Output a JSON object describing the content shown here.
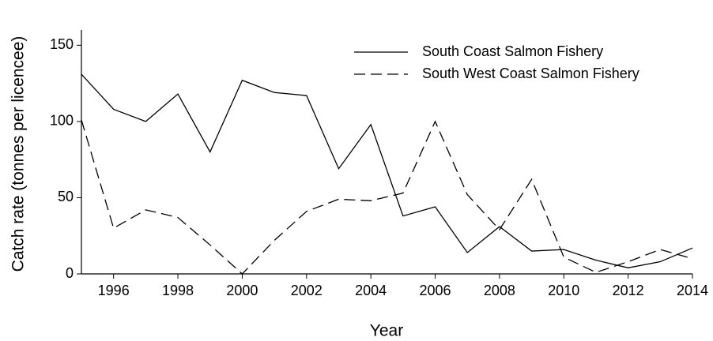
{
  "chart_data": {
    "type": "line",
    "x_label": "Year",
    "y_label": "Catch rate (tonnes per licencee)",
    "x": [
      1995,
      1996,
      1997,
      1998,
      1999,
      2000,
      2001,
      2002,
      2003,
      2004,
      2005,
      2006,
      2007,
      2008,
      2009,
      2010,
      2011,
      2012,
      2013,
      2014
    ],
    "series": [
      {
        "name": "South Coast Salmon Fishery",
        "color": "#000000",
        "dashed": false,
        "values": [
          131,
          108,
          100,
          118,
          80,
          127,
          119,
          117,
          69,
          98,
          38,
          44,
          14,
          31,
          15,
          16,
          9,
          4,
          8,
          17
        ]
      },
      {
        "name": "South West Coast Salmon Fishery",
        "color": "#000000",
        "dashed": true,
        "values": [
          101,
          30,
          42,
          37,
          19,
          0,
          22,
          41,
          49,
          48,
          53,
          100,
          52,
          29,
          62,
          11,
          1,
          8,
          16,
          10
        ]
      }
    ],
    "xlim": [
      1995,
      2014
    ],
    "xticks": [
      1996,
      1998,
      2000,
      2002,
      2004,
      2006,
      2008,
      2010,
      2012,
      2014
    ],
    "ylim": [
      0,
      160
    ],
    "yticks": [
      0,
      50,
      100,
      150
    ],
    "legend": "top-right",
    "grid": false
  }
}
